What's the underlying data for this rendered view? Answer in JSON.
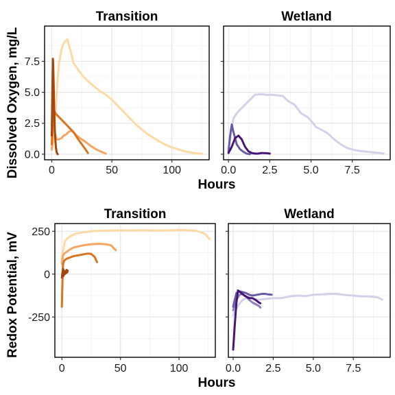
{
  "chart_data": [
    {
      "type": "line",
      "title": "Transition",
      "ylabel": "Dissolved Oxygen, mg/L",
      "xlabel": "Hours",
      "xlim": [
        -6,
        131
      ],
      "ylim": [
        -0.45,
        10.35
      ],
      "xticks": [
        0,
        50,
        100
      ],
      "yticks": [
        0,
        2.5,
        5,
        7.5
      ],
      "ytick_labels": [
        "0.0",
        "2.5",
        "5.0",
        "7.5"
      ],
      "grid": true,
      "series": [
        {
          "color": "#fdd9a4",
          "x": [
            0,
            1,
            2,
            3,
            4,
            5,
            6,
            8,
            10,
            12,
            13,
            14,
            16,
            18,
            22,
            26,
            30,
            35,
            40,
            45,
            50,
            55,
            60,
            65,
            70,
            75,
            80,
            85,
            90,
            95,
            100,
            105,
            110,
            115,
            120,
            125
          ],
          "y": [
            0.3,
            0.8,
            1.8,
            3.2,
            4.8,
            6.2,
            7.3,
            8.4,
            9.0,
            9.2,
            9.3,
            8.9,
            8.2,
            7.4,
            6.8,
            6.3,
            5.9,
            5.5,
            5.1,
            4.8,
            4.4,
            3.9,
            3.4,
            2.9,
            2.4,
            2.0,
            1.6,
            1.3,
            1.0,
            0.75,
            0.55,
            0.4,
            0.25,
            0.15,
            0.08,
            0.03
          ]
        },
        {
          "color": "#f6a560",
          "x": [
            0,
            0.5,
            1,
            2,
            4,
            6,
            8,
            10,
            12,
            14,
            16,
            18,
            20,
            22,
            25,
            28,
            32,
            36,
            40,
            45
          ],
          "y": [
            0.4,
            1.0,
            2.4,
            1.9,
            1.2,
            1.2,
            1.3,
            1.5,
            1.6,
            1.8,
            1.9,
            1.8,
            1.6,
            1.4,
            1.2,
            1.0,
            0.7,
            0.45,
            0.25,
            0.05
          ]
        },
        {
          "color": "#d8731e",
          "x": [
            0,
            0.5,
            1,
            2,
            3,
            4,
            6,
            8,
            10,
            12,
            14,
            16,
            18,
            20,
            22,
            25,
            28,
            30
          ],
          "y": [
            0.8,
            2.2,
            3.3,
            3.5,
            3.3,
            3.2,
            3.0,
            2.8,
            2.6,
            2.4,
            2.2,
            2.0,
            1.8,
            1.5,
            1.2,
            0.8,
            0.4,
            0.1
          ]
        },
        {
          "color": "#a5460c",
          "x": [
            0,
            0.3,
            0.6,
            0.9,
            1.2,
            1.6,
            2.0,
            2.5,
            3.0,
            3.5,
            4.0,
            4.5,
            5.0
          ],
          "y": [
            1.5,
            3.8,
            6.0,
            7.7,
            7.2,
            5.5,
            3.6,
            2.0,
            1.1,
            0.5,
            0.2,
            0.05,
            0.0
          ]
        }
      ]
    },
    {
      "type": "line",
      "title": "Wetland",
      "xlim": [
        -0.3,
        9.8
      ],
      "ylim": [
        -0.45,
        10.35
      ],
      "xticks": [
        0,
        2.5,
        5,
        7.5
      ],
      "xtick_labels": [
        "0.0",
        "2.5",
        "5.0",
        "7.5"
      ],
      "yticks": [
        0,
        2.5,
        5,
        7.5
      ],
      "grid": true,
      "series": [
        {
          "color": "#d3d1e8",
          "x": [
            0,
            0.1,
            0.2,
            0.3,
            0.5,
            0.7,
            1.0,
            1.3,
            1.6,
            2.0,
            2.3,
            2.6,
            3.0,
            3.3,
            3.6,
            4.0,
            4.4,
            4.8,
            5.0,
            5.3,
            5.6,
            6.0,
            6.4,
            6.8,
            7.2,
            7.6,
            8.0,
            8.4,
            8.8,
            9.2,
            9.4
          ],
          "y": [
            0.5,
            1.3,
            2.2,
            2.9,
            3.3,
            3.6,
            4.0,
            4.4,
            4.8,
            4.85,
            4.8,
            4.8,
            4.75,
            4.7,
            4.3,
            4.0,
            3.3,
            3.0,
            2.7,
            2.2,
            2.0,
            1.7,
            1.2,
            0.8,
            0.5,
            0.35,
            0.25,
            0.2,
            0.15,
            0.1,
            0.05
          ]
        },
        {
          "color": "#6a5ba6",
          "x": [
            0,
            0.1,
            0.2,
            0.3,
            0.5,
            0.7,
            0.9,
            1.1,
            1.3
          ],
          "y": [
            0.2,
            1.5,
            2.4,
            1.8,
            0.8,
            0.4,
            0.2,
            0.05,
            0.0
          ]
        },
        {
          "color": "#461576",
          "x": [
            0,
            0.2,
            0.4,
            0.6,
            0.8,
            1.0,
            1.2,
            1.4,
            1.6,
            1.8,
            2.0,
            2.3,
            2.5
          ],
          "y": [
            0.1,
            0.6,
            1.3,
            1.5,
            1.2,
            0.6,
            0.25,
            0.1,
            0.05,
            0.05,
            0.1,
            0.08,
            0.05
          ]
        }
      ]
    },
    {
      "type": "line",
      "title": "Transition",
      "ylabel": "Redox Potential, mV",
      "xlabel": "Hours",
      "xlim": [
        -6,
        131
      ],
      "ylim": [
        -485,
        295
      ],
      "xticks": [
        0,
        50,
        100
      ],
      "yticks": [
        -250,
        0,
        250
      ],
      "grid": true,
      "series": [
        {
          "color": "#fdd9a4",
          "x": [
            0,
            1,
            2,
            3,
            4,
            6,
            8,
            10,
            12,
            15,
            20,
            25,
            30,
            40,
            50,
            60,
            70,
            80,
            90,
            100,
            110,
            115,
            120,
            123,
            126
          ],
          "y": [
            90,
            140,
            175,
            195,
            205,
            215,
            225,
            230,
            236,
            240,
            246,
            250,
            252,
            254,
            255,
            255,
            256,
            254,
            255,
            258,
            255,
            252,
            242,
            230,
            205
          ]
        },
        {
          "color": "#f6a560",
          "x": [
            0,
            0.5,
            1,
            2,
            4,
            6,
            8,
            10,
            14,
            18,
            22,
            26,
            30,
            34,
            38,
            42,
            46
          ],
          "y": [
            60,
            90,
            110,
            120,
            130,
            140,
            148,
            155,
            162,
            168,
            172,
            175,
            176,
            176,
            174,
            168,
            140
          ]
        },
        {
          "color": "#d8731e",
          "x": [
            0,
            0.2,
            0.5,
            0.8,
            1,
            2,
            4,
            6,
            8,
            10,
            14,
            18,
            22,
            25,
            28,
            30
          ],
          "y": [
            -190,
            -120,
            -40,
            20,
            60,
            80,
            90,
            95,
            100,
            105,
            110,
            115,
            120,
            118,
            100,
            70
          ]
        },
        {
          "color": "#a5460c",
          "x": [
            0,
            0.5,
            1,
            1.5,
            2,
            2.5,
            3,
            3.5,
            4,
            4.5,
            5
          ],
          "y": [
            -20,
            10,
            30,
            -10,
            20,
            0,
            15,
            5,
            25,
            10,
            20
          ]
        }
      ]
    },
    {
      "type": "line",
      "title": "Wetland",
      "xlim": [
        -0.3,
        9.8
      ],
      "ylim": [
        -485,
        295
      ],
      "xticks": [
        0,
        2.5,
        5,
        7.5
      ],
      "xtick_labels": [
        "0.0",
        "2.5",
        "5.0",
        "7.5"
      ],
      "yticks": [
        -250,
        0,
        250
      ],
      "grid": true,
      "series": [
        {
          "color": "#d3d1e8",
          "x": [
            0,
            0.2,
            0.4,
            0.6,
            0.8,
            1.0,
            1.2,
            1.5,
            2.0,
            2.5,
            3.0,
            3.5,
            4.0,
            4.5,
            5.0,
            5.5,
            6.0,
            6.5,
            7.0,
            7.5,
            8.0,
            8.5,
            9.0,
            9.3
          ],
          "y": [
            -240,
            -200,
            -170,
            -150,
            -140,
            -135,
            -140,
            -150,
            -145,
            -140,
            -140,
            -130,
            -125,
            -128,
            -120,
            -118,
            -115,
            -115,
            -122,
            -125,
            -130,
            -130,
            -135,
            -148
          ]
        },
        {
          "color": "#8d80bf",
          "x": [
            0,
            0.2,
            0.4,
            0.6,
            0.8,
            1.0,
            1.2,
            1.4,
            1.6,
            1.7
          ],
          "y": [
            -210,
            -150,
            -120,
            -115,
            -130,
            -150,
            -165,
            -175,
            -185,
            -195
          ]
        },
        {
          "color": "#6a5ba6",
          "x": [
            0,
            0.2,
            0.4,
            0.6,
            0.8,
            1.0,
            1.2,
            1.5,
            1.8,
            2.0,
            2.2,
            2.4
          ],
          "y": [
            -190,
            -110,
            -100,
            -105,
            -110,
            -120,
            -125,
            -120,
            -115,
            -115,
            -118,
            -120
          ]
        },
        {
          "color": "#461576",
          "x": [
            0,
            0.1,
            0.2,
            0.3,
            0.5,
            0.7,
            1.0,
            1.2,
            1.4,
            1.6,
            1.7
          ],
          "y": [
            -440,
            -300,
            -170,
            -95,
            -110,
            -125,
            -140,
            -140,
            -150,
            -165,
            -170
          ]
        }
      ]
    }
  ]
}
